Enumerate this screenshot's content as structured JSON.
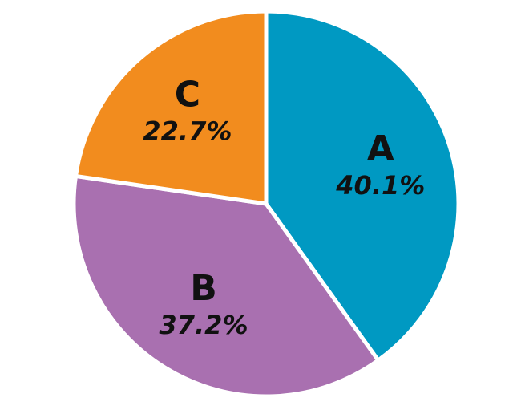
{
  "chart_data": {
    "type": "pie",
    "categories": [
      "A",
      "B",
      "C"
    ],
    "values": [
      40.1,
      37.2,
      22.7
    ],
    "labels": [
      "40.1%",
      "37.2%",
      "22.7%"
    ],
    "colors": [
      "#0099C2",
      "#A970B0",
      "#F28C1E"
    ],
    "start_angle_deg": 0,
    "direction": "clockwise",
    "legend": "none",
    "title": ""
  }
}
